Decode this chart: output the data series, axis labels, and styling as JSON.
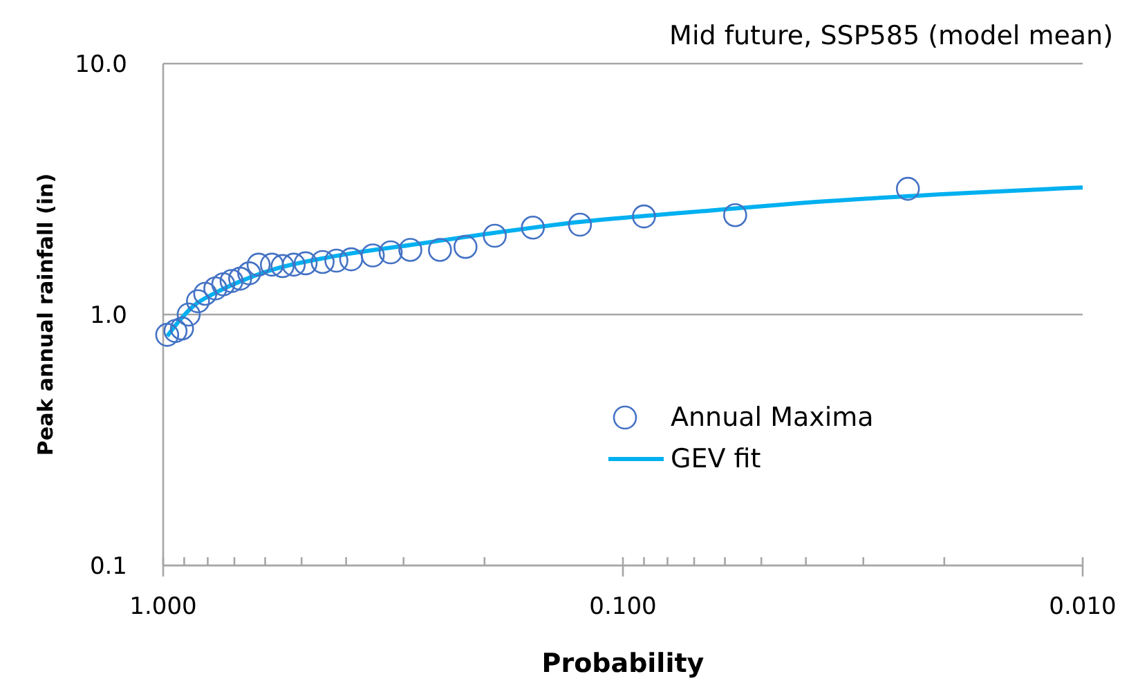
{
  "chart_data": {
    "type": "scatter",
    "title": "Mid future, SSP585 (model mean)",
    "xlabel": "Probability",
    "ylabel": "Peak annual rainfall (in)",
    "log": "xy",
    "grid": "y",
    "legend": "bottom right",
    "xlim": [
      1,
      0.01
    ],
    "ylim": [
      0.1,
      10
    ],
    "xticks": [
      {
        "value": 1,
        "label": "1.000"
      },
      {
        "value": 0.9,
        "label": null
      },
      {
        "value": 0.8,
        "label": null
      },
      {
        "value": 0.7,
        "label": null
      },
      {
        "value": 0.6,
        "label": null
      },
      {
        "value": 0.5,
        "label": null
      },
      {
        "value": 0.4,
        "label": null
      },
      {
        "value": 0.3,
        "label": null
      },
      {
        "value": 0.2,
        "label": null
      },
      {
        "value": 0.1,
        "label": "0.100"
      },
      {
        "value": 0.09,
        "label": null
      },
      {
        "value": 0.08,
        "label": null
      },
      {
        "value": 0.07,
        "label": null
      },
      {
        "value": 0.06,
        "label": null
      },
      {
        "value": 0.05,
        "label": null
      },
      {
        "value": 0.04,
        "label": null
      },
      {
        "value": 0.03,
        "label": null
      },
      {
        "value": 0.02,
        "label": null
      },
      {
        "value": 0.01,
        "label": "0.010"
      }
    ],
    "yticks": [
      0.1,
      {
        "value": 1,
        "label": "1.0"
      },
      {
        "value": 10,
        "label": "10.0"
      }
    ],
    "series": [
      {
        "name": "Annual Maxima",
        "marker": "circle",
        "color": "#4472c4",
        "x": [
          0.98,
          0.94,
          0.91,
          0.88,
          0.84,
          0.81,
          0.77,
          0.74,
          0.71,
          0.68,
          0.65,
          0.62,
          0.58,
          0.55,
          0.52,
          0.49,
          0.45,
          0.42,
          0.39,
          0.35,
          0.32,
          0.29,
          0.25,
          0.22,
          0.19,
          0.157,
          0.124,
          0.09,
          0.057,
          0.024
        ],
        "values": [
          0.83,
          0.86,
          0.88,
          1.0,
          1.13,
          1.21,
          1.27,
          1.32,
          1.36,
          1.39,
          1.46,
          1.58,
          1.58,
          1.56,
          1.58,
          1.6,
          1.62,
          1.64,
          1.66,
          1.72,
          1.77,
          1.81,
          1.81,
          1.86,
          2.06,
          2.22,
          2.28,
          2.46,
          2.49,
          3.17
        ]
      },
      {
        "name": "GEV fit",
        "type": "line",
        "color": "#00b0f0",
        "x": [
          0.98,
          0.92,
          0.86,
          0.77,
          0.67,
          0.57,
          0.43,
          0.28,
          0.2,
          0.124,
          0.071,
          0.036,
          0.018,
          0.01
        ],
        "values": [
          0.82,
          0.95,
          1.08,
          1.22,
          1.37,
          1.52,
          1.7,
          1.91,
          2.09,
          2.34,
          2.56,
          2.83,
          3.05,
          3.21
        ]
      }
    ]
  }
}
